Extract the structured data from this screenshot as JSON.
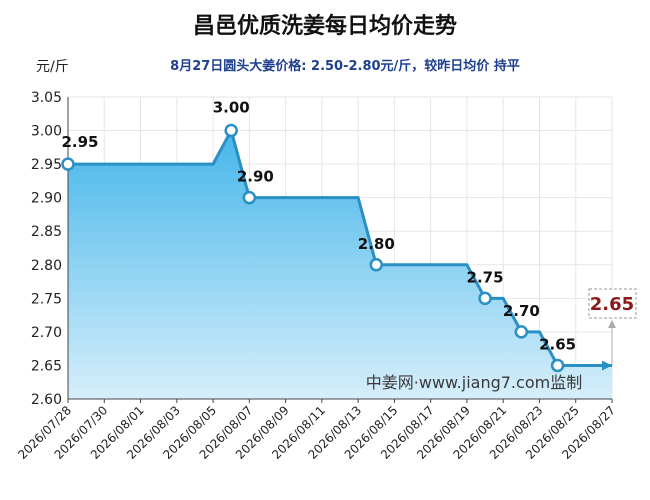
{
  "header": {
    "title": "昌邑优质洗姜每日均价走势",
    "subtitle": "8月27日圆头大姜价格: 2.50-2.80元/斤，较昨日均价 持平",
    "unit": "元/斤"
  },
  "watermark": "中姜网·www.jiang7.com监制",
  "last_value_label": "2.65",
  "colors": {
    "line": "#2a8fc4",
    "fill_top": "#45b6ea",
    "fill_bottom": "#d6eefb",
    "last_value": "#8b1a1a"
  },
  "chart_data": {
    "type": "area",
    "title": "昌邑优质洗姜每日均价走势",
    "ylabel": "元/斤",
    "ylim": [
      2.6,
      3.05
    ],
    "yticks": [
      "2.60",
      "2.65",
      "2.70",
      "2.75",
      "2.80",
      "2.85",
      "2.90",
      "2.95",
      "3.00",
      "3.05"
    ],
    "x_tick_labels": [
      "2026/07/28",
      "2026/07/30",
      "2026/08/01",
      "2026/08/03",
      "2026/08/05",
      "2026/08/07",
      "2026/08/09",
      "2026/08/11",
      "2026/08/13",
      "2026/08/15",
      "2026/08/17",
      "2026/08/19",
      "2026/08/21",
      "2026/08/23",
      "2026/08/25",
      "2026/08/27"
    ],
    "grid": true,
    "points": [
      {
        "x": "2026/07/28",
        "y": 2.95,
        "label": "2.95"
      },
      {
        "x": "2026/08/05",
        "y": 2.95
      },
      {
        "x": "2026/08/06",
        "y": 3.0,
        "label": "3.00"
      },
      {
        "x": "2026/08/07",
        "y": 2.9,
        "label": "2.90"
      },
      {
        "x": "2026/08/13",
        "y": 2.9
      },
      {
        "x": "2026/08/14",
        "y": 2.8,
        "label": "2.80"
      },
      {
        "x": "2026/08/19",
        "y": 2.8
      },
      {
        "x": "2026/08/20",
        "y": 2.75,
        "label": "2.75"
      },
      {
        "x": "2026/08/21",
        "y": 2.75
      },
      {
        "x": "2026/08/22",
        "y": 2.7,
        "label": "2.70"
      },
      {
        "x": "2026/08/23",
        "y": 2.7
      },
      {
        "x": "2026/08/24",
        "y": 2.65,
        "label": "2.65"
      },
      {
        "x": "2026/08/27",
        "y": 2.65
      }
    ]
  }
}
